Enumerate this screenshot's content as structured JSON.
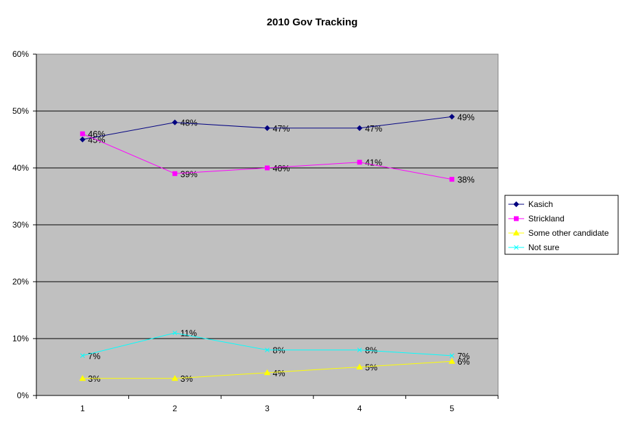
{
  "chart_data": {
    "type": "line",
    "title": "2010 Gov Tracking",
    "xlabel": "",
    "ylabel": "",
    "categories": [
      "1",
      "2",
      "3",
      "4",
      "5"
    ],
    "ylim": [
      0,
      60
    ],
    "yticks": [
      "0%",
      "10%",
      "20%",
      "30%",
      "40%",
      "50%",
      "60%"
    ],
    "value_format": "percent",
    "grid": true,
    "legend": "right",
    "plot_background": "#C0C0C0",
    "series": [
      {
        "name": "Kasich",
        "values": [
          45,
          48,
          47,
          47,
          49
        ],
        "color": "#000080",
        "marker": "diamond"
      },
      {
        "name": "Strickland",
        "values": [
          46,
          39,
          40,
          41,
          38
        ],
        "color": "#FF00FF",
        "marker": "square"
      },
      {
        "name": "Some other candidate",
        "values": [
          3,
          3,
          4,
          5,
          6
        ],
        "color": "#FFFF00",
        "marker": "triangle"
      },
      {
        "name": "Not sure",
        "values": [
          7,
          11,
          8,
          8,
          7
        ],
        "color": "#00FFFF",
        "marker": "x"
      }
    ]
  }
}
